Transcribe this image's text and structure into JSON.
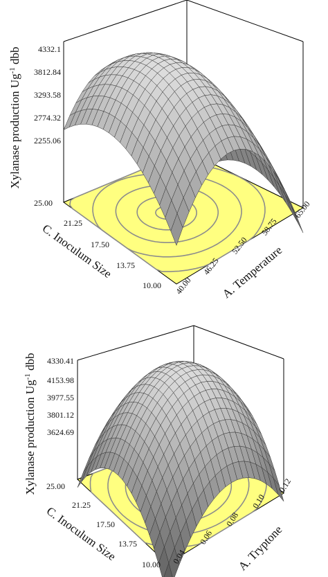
{
  "chart_data": [
    {
      "type": "surface3d",
      "title": "",
      "zlabel": {
        "main": "Xylanase production Ug",
        "sup": "-1",
        "tail": " dbb"
      },
      "z_ticks": [
        "4332.1",
        "3812.84",
        "3293.58",
        "2774.32",
        "2255.06"
      ],
      "x_label": "A. Temperature",
      "x_ticks": [
        "40.00",
        "46.25",
        "52.50",
        "58.75",
        "65.00"
      ],
      "y_label": "C. Inoculum Size",
      "y_ticks": [
        "10.00",
        "13.75",
        "17.50",
        "21.25",
        "25.00"
      ],
      "surface_color": "#b8b8b8",
      "floor_color": "#ffff80",
      "contour_color": "#8c8c8c"
    },
    {
      "type": "surface3d",
      "title": "",
      "zlabel": {
        "main": "Xylanase production Ug",
        "sup": "-1",
        "tail": " dbb"
      },
      "z_ticks": [
        "4330.41",
        "4153.98",
        "3977.55",
        "3801.12",
        "3624.69"
      ],
      "x_label": "A. Tryptone",
      "x_ticks": [
        "0.04",
        "0.06",
        "0.08",
        "0.10",
        "0.12"
      ],
      "y_label": "C. Inoculum Size",
      "y_ticks": [
        "10.00",
        "13.75",
        "17.50",
        "21.25",
        "25.00"
      ],
      "surface_color": "#b8b8b8",
      "floor_color": "#ffff80",
      "contour_color": "#8c8c8c"
    }
  ]
}
